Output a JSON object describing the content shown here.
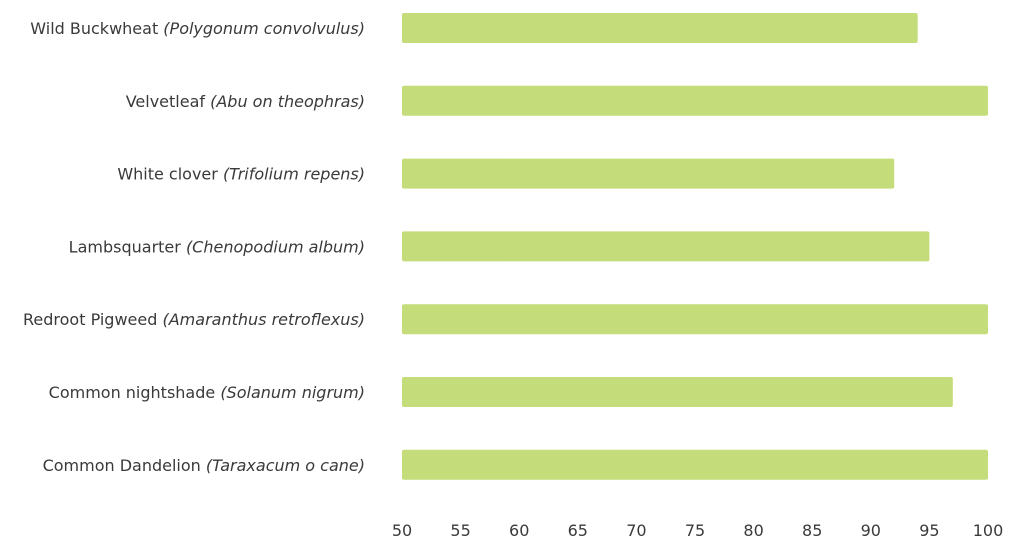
{
  "chart_data": {
    "type": "bar",
    "orientation": "horizontal",
    "categories": [
      {
        "common": "Wild Buckwheat",
        "scientific": "(Polygonum convolvulus)"
      },
      {
        "common": "Velvetleaf",
        "scientific": "(Abu on theophras)"
      },
      {
        "common": "White clover",
        "scientific": "(Trifolium repens)"
      },
      {
        "common": "Lambsquarter",
        "scientific": "(Chenopodium album)"
      },
      {
        "common": "Redroot Pigweed",
        "scientific": "(Amaranthus retroflexus)"
      },
      {
        "common": "Common nightshade",
        "scientific": "(Solanum nigrum)"
      },
      {
        "common": "Common Dandelion",
        "scientific": "(Taraxacum o cane)"
      }
    ],
    "values": [
      94,
      100,
      92,
      95,
      100,
      97,
      100
    ],
    "xlim": [
      50,
      100
    ],
    "xticks": [
      "50",
      "55",
      "60",
      "65",
      "70",
      "75",
      "80",
      "85",
      "90",
      "95",
      "100"
    ],
    "bar_color": "#c5dc7b",
    "grid": false,
    "title": "",
    "xlabel": "",
    "ylabel": ""
  }
}
